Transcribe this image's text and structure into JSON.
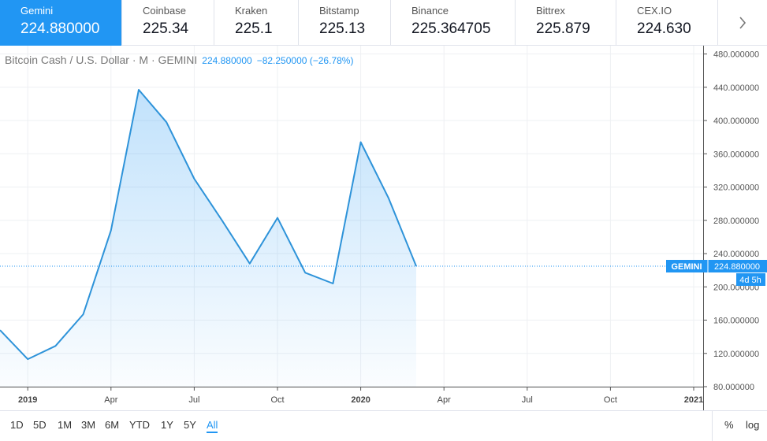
{
  "exchanges": [
    {
      "name": "Gemini",
      "price": "224.880000",
      "active": true
    },
    {
      "name": "Coinbase",
      "price": "225.34",
      "active": false
    },
    {
      "name": "Kraken",
      "price": "225.1",
      "active": false
    },
    {
      "name": "Bitstamp",
      "price": "225.13",
      "active": false
    },
    {
      "name": "Binance",
      "price": "225.364705",
      "active": false
    },
    {
      "name": "Bittrex",
      "price": "225.879",
      "active": false
    },
    {
      "name": "CEX.IO",
      "price": "224.630",
      "active": false
    }
  ],
  "legend": {
    "symbol": "Bitcoin Cash / U.S. Dollar · M · GEMINI",
    "value": "224.880000",
    "change": "−82.250000 (−26.78%)"
  },
  "timeframes": [
    "1D",
    "5D",
    "1M",
    "3M",
    "6M",
    "YTD",
    "1Y",
    "5Y",
    "All"
  ],
  "active_timeframe": "All",
  "scale_options": [
    "%",
    "log"
  ],
  "colors": {
    "accent": "#2196f3",
    "line": "#2e93d9",
    "grid": "#eef0f3"
  },
  "chart_data": {
    "type": "area",
    "title": "Bitcoin Cash / U.S. Dollar · M · GEMINI",
    "interval": "monthly",
    "x": [
      "2018-12",
      "2019-01",
      "2019-02",
      "2019-03",
      "2019-04",
      "2019-05",
      "2019-06",
      "2019-07",
      "2019-08",
      "2019-09",
      "2019-10",
      "2019-11",
      "2019-12",
      "2020-01",
      "2020-02",
      "2020-03"
    ],
    "values": [
      148,
      113,
      129,
      167,
      268,
      437,
      398,
      330,
      280,
      228,
      283,
      217,
      204,
      374,
      307,
      224.88
    ],
    "ylim": [
      80,
      490
    ],
    "yticks": [
      80,
      120,
      160,
      200,
      240,
      280,
      320,
      360,
      400,
      440,
      480
    ],
    "ytick_labels": [
      "80.000000",
      "120.000000",
      "160.000000",
      "200.000000",
      "240.000000",
      "280.000000",
      "320.000000",
      "360.000000",
      "400.000000",
      "440.000000",
      "480.000000"
    ],
    "xticks": [
      "2019",
      "Apr",
      "Jul",
      "Oct",
      "2020",
      "Apr",
      "Jul",
      "Oct",
      "2021"
    ],
    "xtick_bold": [
      "2019",
      "2020",
      "2021"
    ],
    "xtick_dates": [
      "2019-01",
      "2019-04",
      "2019-07",
      "2019-10",
      "2020-01",
      "2020-04",
      "2020-07",
      "2020-10",
      "2021-01"
    ],
    "x_range": [
      "2018-12",
      "2021-01"
    ],
    "last_price_label": {
      "exchange": "GEMINI",
      "value": "224.880000",
      "countdown": "4d 5h"
    },
    "grid": true
  }
}
